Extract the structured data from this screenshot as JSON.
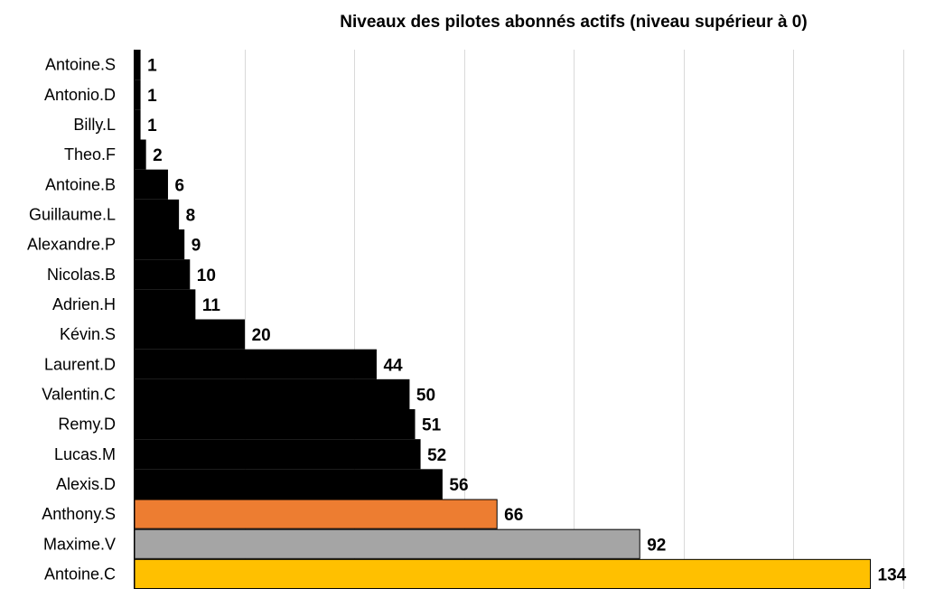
{
  "chart_data": {
    "type": "bar",
    "orientation": "horizontal",
    "title": "Niveaux des pilotes abonnés actifs (niveau supérieur à 0)",
    "xlabel": "",
    "ylabel": "",
    "xlim": [
      0,
      140
    ],
    "grid": true,
    "categories": [
      "Antoine.S",
      "Antonio.D",
      "Billy.L",
      "Theo.F",
      "Antoine.B",
      "Guillaume.L",
      "Alexandre.P",
      "Nicolas.B",
      "Adrien.H",
      "Kévin.S",
      "Laurent.D",
      "Valentin.C",
      "Remy.D",
      "Lucas.M",
      "Alexis.D",
      "Anthony.S",
      "Maxime.V",
      "Antoine.C"
    ],
    "values": [
      1,
      1,
      1,
      2,
      6,
      8,
      9,
      10,
      11,
      20,
      44,
      50,
      51,
      52,
      56,
      66,
      92,
      134
    ],
    "colors": [
      "#000000",
      "#000000",
      "#000000",
      "#000000",
      "#000000",
      "#000000",
      "#000000",
      "#000000",
      "#000000",
      "#000000",
      "#000000",
      "#000000",
      "#000000",
      "#000000",
      "#000000",
      "#ed7d31",
      "#a5a5a5",
      "#ffc000"
    ],
    "data_labels": true
  }
}
